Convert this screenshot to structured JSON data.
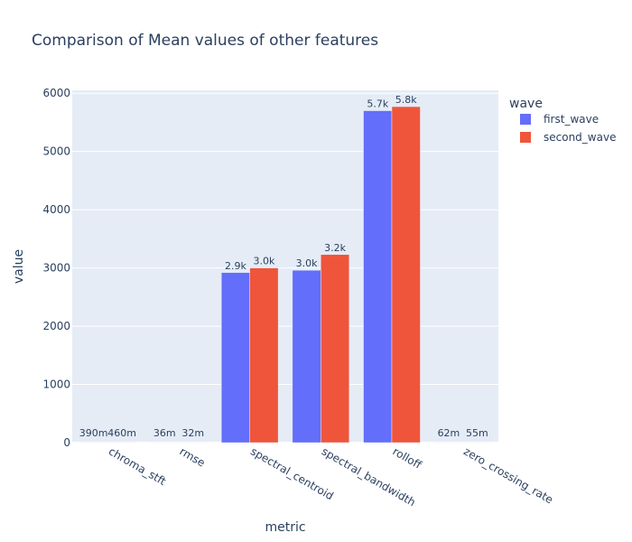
{
  "chart_data": {
    "type": "bar",
    "title": "Comparison of Mean values of other features",
    "xlabel": "metric",
    "ylabel": "value",
    "ylim": [
      0,
      6050
    ],
    "yticks": [
      0,
      1000,
      2000,
      3000,
      4000,
      5000,
      6000
    ],
    "grid": true,
    "legend_title": "wave",
    "legend_position": "top-right",
    "categories": [
      "chroma_stft",
      "rmse",
      "spectral_centroid",
      "spectral_bandwidth",
      "rolloff",
      "zero_crossing_rate"
    ],
    "series": [
      {
        "name": "first_wave",
        "color": "#636efa",
        "values": [
          0.39,
          0.036,
          2920,
          2960,
          5700,
          0.062
        ],
        "labels": [
          "390m",
          "36m",
          "2.9k",
          "3.0k",
          "5.7k",
          "62m"
        ]
      },
      {
        "name": "second_wave",
        "color": "#ef553b",
        "values": [
          0.46,
          0.032,
          3000,
          3230,
          5770,
          0.055
        ],
        "labels": [
          "460m",
          "32m",
          "3.0k",
          "3.2k",
          "5.8k",
          "55m"
        ]
      }
    ],
    "colors": {
      "plot_bg": "#e5ecf6",
      "grid": "#ffffff",
      "text": "#2a3f5f"
    }
  }
}
